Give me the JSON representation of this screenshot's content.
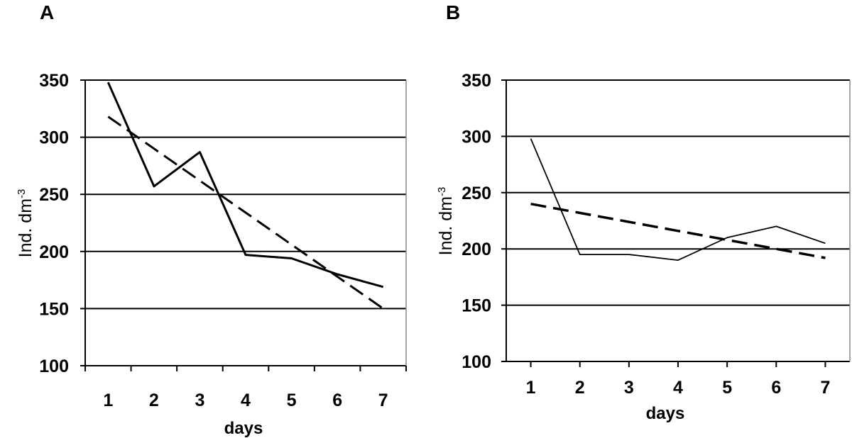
{
  "chart_data": [
    {
      "type": "line",
      "panel_label": "A",
      "x": [
        1,
        2,
        3,
        4,
        5,
        6,
        7
      ],
      "categories": [
        "1",
        "2",
        "3",
        "4",
        "5",
        "6",
        "7"
      ],
      "series": [
        {
          "values": [
            348,
            257,
            287,
            197,
            194,
            180,
            169
          ],
          "style": "solid",
          "color": "#000000"
        },
        {
          "values": [
            318,
            290,
            262,
            234,
            206,
            178,
            150
          ],
          "style": "dashed",
          "color": "#000000"
        }
      ],
      "xlabel": "days",
      "ylabel": "Ind. dm",
      "ylabel_sup": "-3",
      "ylim": [
        100,
        350
      ],
      "yticks": [
        "100",
        "150",
        "200",
        "250",
        "300",
        "350"
      ],
      "grid": true,
      "legend": "none"
    },
    {
      "type": "line",
      "panel_label": "B",
      "x": [
        1,
        2,
        3,
        4,
        5,
        6,
        7
      ],
      "categories": [
        "1",
        "2",
        "3",
        "4",
        "5",
        "6",
        "7"
      ],
      "series": [
        {
          "values": [
            298,
            195,
            195,
            190,
            210,
            220,
            205
          ],
          "style": "solid",
          "color": "#000000"
        },
        {
          "values": [
            240,
            232,
            224,
            216,
            208,
            200,
            192
          ],
          "style": "dashed",
          "color": "#000000"
        }
      ],
      "xlabel": "days",
      "ylabel": "Ind. dm",
      "ylabel_sup": "-3",
      "ylim": [
        100,
        350
      ],
      "yticks": [
        "100",
        "150",
        "200",
        "250",
        "300",
        "350"
      ],
      "grid": true,
      "legend": "none"
    }
  ]
}
